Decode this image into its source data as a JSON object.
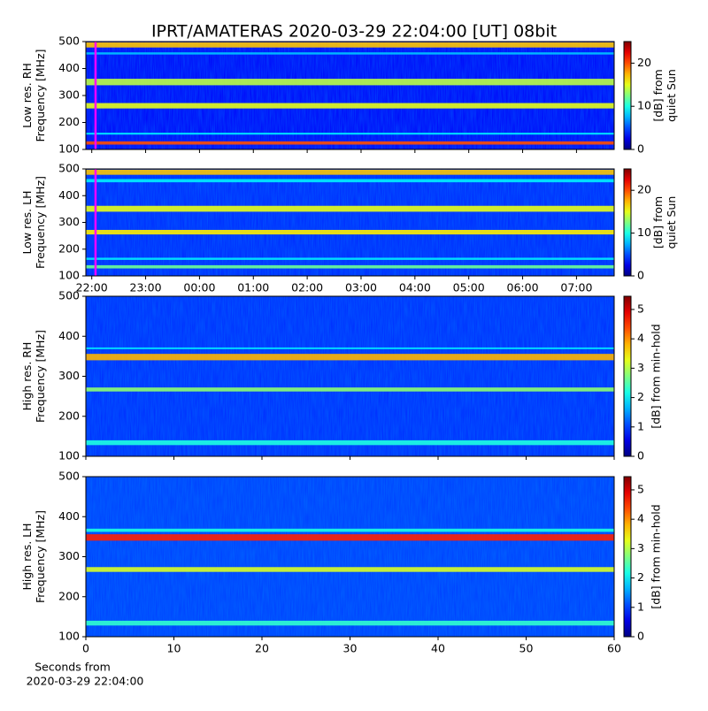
{
  "chart_data": [
    {
      "type": "heatmap",
      "title": "IPRT/AMATERAS 2020-03-29 22:04:00 [UT]   08bit",
      "ylabel": [
        "Low res. RH",
        "Frequency [MHz]"
      ],
      "clabel": [
        "[dB] from",
        "quiet Sun"
      ],
      "xlim": [
        -0.11,
        9.7
      ],
      "xticks": [
        0,
        1,
        2,
        3,
        4,
        5,
        6,
        7,
        8,
        9
      ],
      "xticklabels": false,
      "ylim": [
        100,
        500
      ],
      "yticks": [
        100,
        200,
        300,
        400,
        500
      ],
      "clim": [
        0,
        25
      ],
      "cticks": [
        0,
        10,
        20
      ],
      "colormap": "jet",
      "cursor": 0.07,
      "cursor_color": "#ff00ff",
      "background": 3,
      "bands": [
        {
          "y": [
            118,
            130
          ],
          "value": 20
        },
        {
          "y": [
            155,
            162
          ],
          "value": 9
        },
        {
          "y": [
            252,
            272
          ],
          "value": 15
        },
        {
          "y": [
            338,
            362
          ],
          "value": 14
        },
        {
          "y": [
            452,
            460
          ],
          "value": 8
        },
        {
          "y": [
            478,
            497
          ],
          "value": 17
        }
      ]
    },
    {
      "type": "heatmap",
      "ylabel": [
        "Low res. LH",
        "Frequency [MHz]"
      ],
      "clabel": [
        "[dB] from",
        "quiet Sun"
      ],
      "xlim": [
        -0.11,
        9.7
      ],
      "xticks": [
        {
          "value": 0,
          "label": "22:00"
        },
        {
          "value": 1,
          "label": "23:00"
        },
        {
          "value": 2,
          "label": "00:00"
        },
        {
          "value": 3,
          "label": "01:00"
        },
        {
          "value": 4,
          "label": "02:00"
        },
        {
          "value": 5,
          "label": "03:00"
        },
        {
          "value": 6,
          "label": "04:00"
        },
        {
          "value": 7,
          "label": "05:00"
        },
        {
          "value": 8,
          "label": "06:00"
        },
        {
          "value": 9,
          "label": "07:00"
        }
      ],
      "xticklabels": true,
      "ylim": [
        100,
        500
      ],
      "yticks": [
        100,
        200,
        300,
        400,
        500
      ],
      "clim": [
        0,
        25
      ],
      "cticks": [
        0,
        10,
        20
      ],
      "colormap": "jet",
      "cursor": 0.07,
      "cursor_color": "#ff00ff",
      "background": 4,
      "bands": [
        {
          "y": [
            128,
            140
          ],
          "value": 12
        },
        {
          "y": [
            160,
            168
          ],
          "value": 9
        },
        {
          "y": [
            255,
            272
          ],
          "value": 16
        },
        {
          "y": [
            340,
            362
          ],
          "value": 15
        },
        {
          "y": [
            450,
            462
          ],
          "value": 9
        },
        {
          "y": [
            478,
            497
          ],
          "value": 17
        }
      ]
    },
    {
      "type": "heatmap",
      "ylabel": [
        "High res. RH",
        "Frequency [MHz]"
      ],
      "clabel": [
        "[dB] from min-hold"
      ],
      "xlim": [
        0,
        60
      ],
      "xticks": [
        0,
        10,
        20,
        30,
        40,
        50,
        60
      ],
      "xticklabels": false,
      "ylim": [
        100,
        500
      ],
      "yticks": [
        100,
        200,
        300,
        400,
        500
      ],
      "clim": [
        0,
        5.45
      ],
      "cticks": [
        0,
        1,
        2,
        3,
        4,
        5
      ],
      "colormap": "jet",
      "background": 0.9,
      "bands": [
        {
          "y": [
            128,
            140
          ],
          "value": 2.2
        },
        {
          "y": [
            262,
            272
          ],
          "value": 2.8
        },
        {
          "y": [
            340,
            356
          ],
          "value": 3.8
        },
        {
          "y": [
            368,
            372
          ],
          "value": 2.0
        }
      ]
    },
    {
      "type": "heatmap",
      "ylabel": [
        "High res. LH",
        "Frequency [MHz]"
      ],
      "clabel": [
        "[dB] from min-hold"
      ],
      "xlim": [
        0,
        60
      ],
      "xticks": [
        0,
        10,
        20,
        30,
        40,
        50,
        60
      ],
      "xticklabels": true,
      "xlabel": [
        "Seconds from",
        "2020-03-29 22:04:00"
      ],
      "ylim": [
        100,
        500
      ],
      "yticks": [
        100,
        200,
        300,
        400,
        500
      ],
      "clim": [
        0,
        5.45
      ],
      "cticks": [
        0,
        1,
        2,
        3,
        4,
        5
      ],
      "colormap": "jet",
      "background": 1.0,
      "bands": [
        {
          "y": [
            128,
            140
          ],
          "value": 2.3
        },
        {
          "y": [
            262,
            274
          ],
          "value": 3.2
        },
        {
          "y": [
            340,
            356
          ],
          "value": 4.6
        },
        {
          "y": [
            362,
            370
          ],
          "value": 2.2
        }
      ]
    }
  ]
}
